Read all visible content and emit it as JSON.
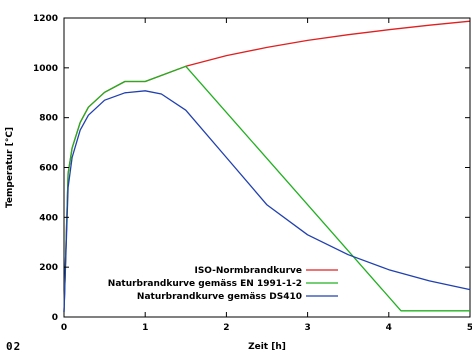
{
  "page_label": "02",
  "chart_data": {
    "type": "line",
    "title": "",
    "xlabel": "Zeit [h]",
    "ylabel": "Temperatur [°C]",
    "xlim": [
      0,
      5
    ],
    "ylim": [
      0,
      1200
    ],
    "xticks": [
      0,
      1,
      2,
      3,
      4,
      5
    ],
    "yticks": [
      0,
      200,
      400,
      600,
      800,
      1000,
      1200
    ],
    "grid": false,
    "legend_position": "bottom-right",
    "series": [
      {
        "name": "ISO-Normbrandkurve",
        "color": "#e02020",
        "x": [
          0,
          0.05,
          0.1,
          0.2,
          0.3,
          0.5,
          0.75,
          1.0,
          1.5,
          2.0,
          2.5,
          3.0,
          3.5,
          4.0,
          4.5,
          5.0
        ],
        "y": [
          20,
          576,
          678,
          781,
          842,
          902,
          945,
          945,
          1006,
          1049,
          1082,
          1110,
          1133,
          1153,
          1171,
          1187
        ]
      },
      {
        "name": "Naturbrandkurve gemäss EN 1991-1-2",
        "color": "#20b020",
        "x": [
          0,
          0.05,
          0.1,
          0.2,
          0.3,
          0.5,
          0.75,
          1.0,
          1.5,
          4.15,
          5.0
        ],
        "y": [
          20,
          576,
          678,
          781,
          842,
          902,
          945,
          945,
          1006,
          25,
          25
        ]
      },
      {
        "name": "Naturbrandkurve gemäss DS410",
        "color": "#2040b0",
        "x": [
          0,
          0.05,
          0.1,
          0.2,
          0.3,
          0.5,
          0.75,
          1.0,
          1.2,
          1.5,
          2.0,
          2.5,
          3.0,
          3.5,
          4.0,
          4.5,
          5.0
        ],
        "y": [
          20,
          520,
          640,
          750,
          810,
          870,
          900,
          908,
          895,
          830,
          640,
          450,
          330,
          250,
          190,
          145,
          110
        ]
      }
    ]
  }
}
